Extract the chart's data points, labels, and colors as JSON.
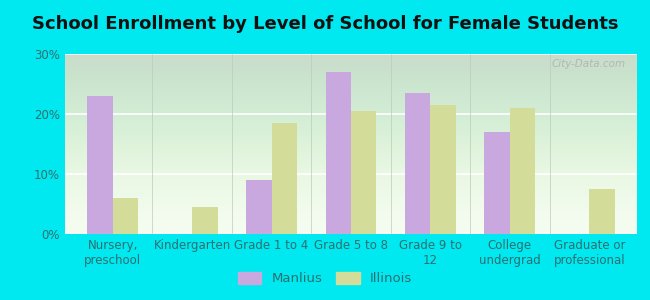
{
  "title": "School Enrollment by Level of School for Female Students",
  "categories": [
    "Nursery,\npreschool",
    "Kindergarten",
    "Grade 1 to 4",
    "Grade 5 to 8",
    "Grade 9 to\n12",
    "College\nundergrad",
    "Graduate or\nprofessional"
  ],
  "manlius_values": [
    23,
    0,
    9,
    27,
    23.5,
    17,
    0
  ],
  "illinois_values": [
    6,
    4.5,
    18.5,
    20.5,
    21.5,
    21,
    7.5
  ],
  "manlius_color": "#c9a8e0",
  "illinois_color": "#d4dc9a",
  "background_outer": "#00e8f0",
  "title_color": "#111111",
  "tick_color": "#2a7070",
  "ylim": [
    0,
    30
  ],
  "yticks": [
    0,
    10,
    20,
    30
  ],
  "ytick_labels": [
    "0%",
    "10%",
    "20%",
    "30%"
  ],
  "legend_labels": [
    "Manlius",
    "Illinois"
  ],
  "watermark": "City-Data.com",
  "title_fontsize": 13,
  "tick_fontsize": 8.5,
  "legend_fontsize": 9.5
}
